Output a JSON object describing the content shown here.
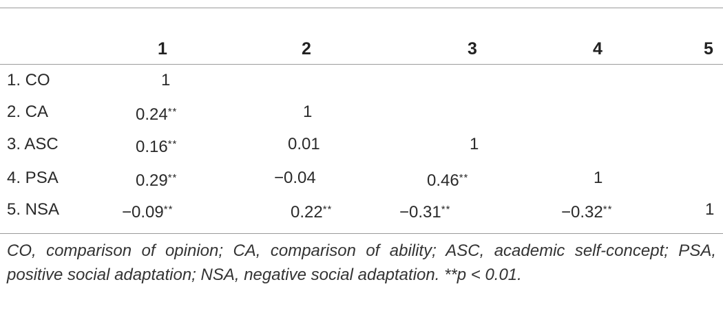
{
  "table": {
    "headers": [
      "1",
      "2",
      "3",
      "4",
      "5"
    ],
    "rows": [
      {
        "label": "1. CO",
        "cells": [
          "1",
          "",
          "",
          "",
          ""
        ]
      },
      {
        "label": "2. CA",
        "cells": [
          "0.24**",
          "1",
          "",
          "",
          ""
        ]
      },
      {
        "label": "3. ASC",
        "cells": [
          "0.16**",
          "0.01",
          "1",
          "",
          ""
        ]
      },
      {
        "label": "4. PSA",
        "cells": [
          "0.29**",
          "−0.04",
          "0.46**",
          "1",
          ""
        ]
      },
      {
        "label": "5. NSA",
        "cells": [
          "−0.09**",
          "0.22**",
          "−0.31**",
          "−0.32**",
          "1"
        ]
      }
    ]
  },
  "note": "CO, comparison of opinion; CA, comparison of ability; ASC, academic self-concept; PSA, positive social adaptation; NSA, negative social adaptation. **p < 0.01."
}
